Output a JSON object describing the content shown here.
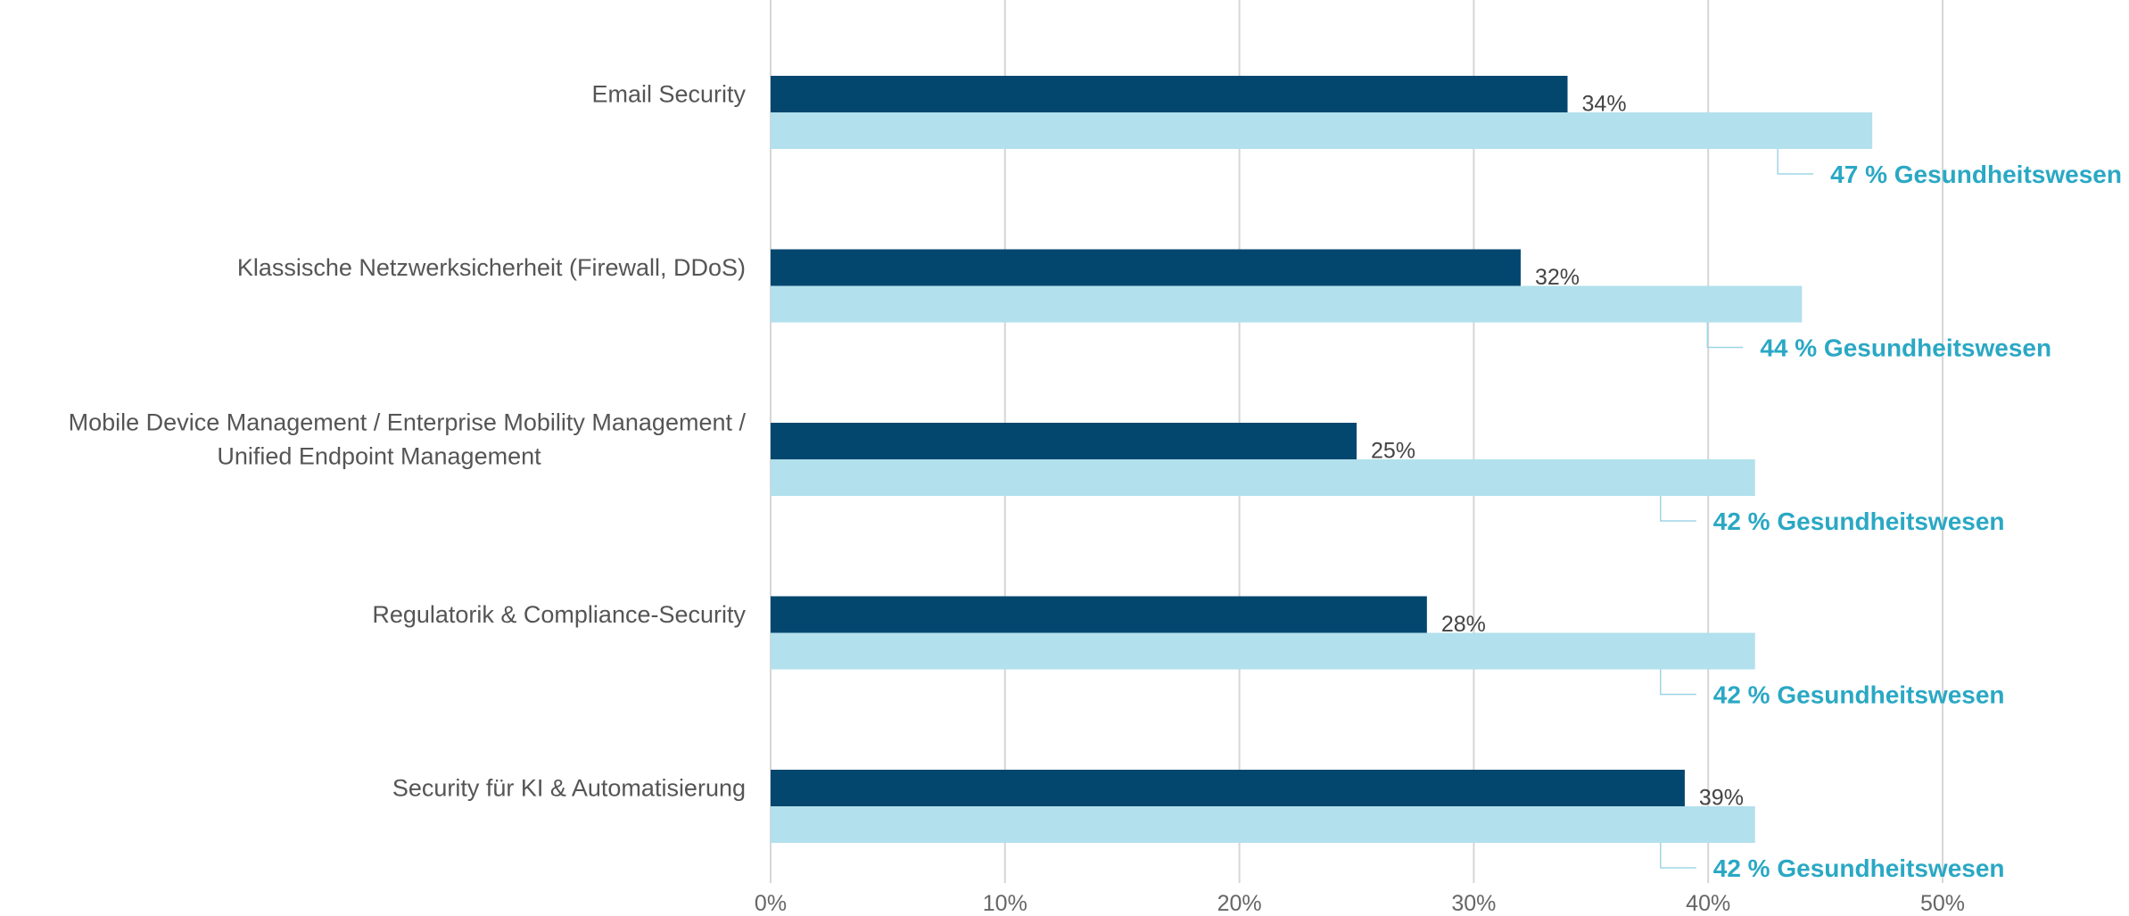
{
  "chart_data": {
    "type": "bar",
    "orientation": "horizontal",
    "categories": [
      [
        "Email Security"
      ],
      [
        "Klassische Netzwerksicherheit (Firewall, DDoS)"
      ],
      [
        "Mobile Device Management / Enterprise Mobility Management /",
        "Unified Endpoint Management"
      ],
      [
        "Regulatorik & Compliance-Security"
      ],
      [
        "Security für KI & Automatisierung"
      ]
    ],
    "series": [
      {
        "values": [
          34,
          32,
          25,
          28,
          39
        ],
        "labels": [
          "34%",
          "32%",
          "25%",
          "28%",
          "39%"
        ],
        "color": "#03476f"
      },
      {
        "values": [
          47,
          44,
          42,
          42,
          42
        ],
        "labels": [
          "47 % Gesundheitswesen",
          "44 % Gesundheitswesen",
          "42 % Gesundheitswesen",
          "42 % Gesundheitswesen",
          "42 % Gesundheitswesen"
        ],
        "color": "#b2e0ec",
        "label_color": "#2aa8c4"
      }
    ],
    "xlim": [
      0,
      50
    ],
    "ticks": [
      0,
      10,
      20,
      30,
      40,
      50
    ],
    "tick_labels": [
      "0%",
      "10%",
      "20%",
      "30%",
      "40%",
      "50%"
    ],
    "grid": true,
    "legend": "none"
  }
}
